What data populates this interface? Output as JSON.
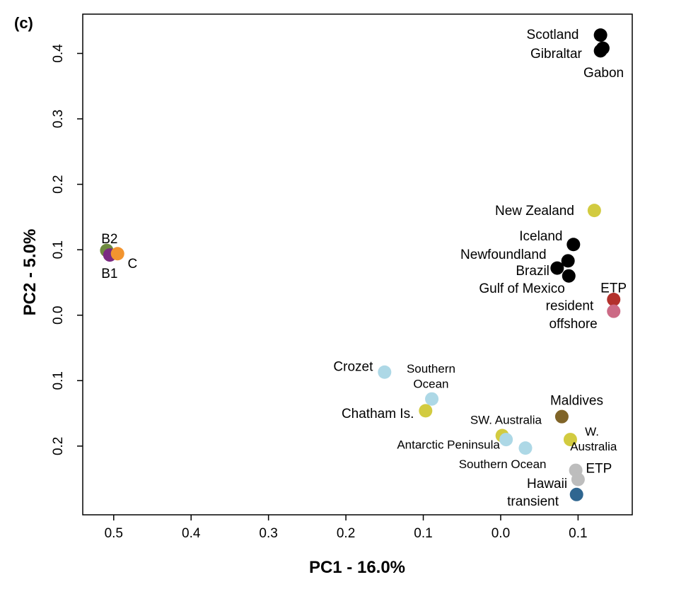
{
  "panel_label": "(c)",
  "chart_data": {
    "type": "scatter",
    "xlabel": "PC1 - 16.0%",
    "ylabel": "PC2 - 5.0%",
    "x_axis_data_range": [
      -0.54,
      0.17
    ],
    "y_axis_data_range": [
      -0.305,
      0.46
    ],
    "x_ticks": [
      {
        "value": -0.5,
        "label": "0.5"
      },
      {
        "value": -0.4,
        "label": "0.4"
      },
      {
        "value": -0.3,
        "label": "0.3"
      },
      {
        "value": -0.2,
        "label": "0.2"
      },
      {
        "value": -0.1,
        "label": "0.1"
      },
      {
        "value": 0.0,
        "label": "0.0"
      },
      {
        "value": 0.1,
        "label": "0.1"
      }
    ],
    "y_ticks": [
      {
        "value": 0.4,
        "label": "0.4"
      },
      {
        "value": 0.3,
        "label": "0.3"
      },
      {
        "value": 0.2,
        "label": "0.2"
      },
      {
        "value": 0.1,
        "label": "0.1"
      },
      {
        "value": 0.0,
        "label": "0.0"
      },
      {
        "value": -0.1,
        "label": "0.1"
      },
      {
        "value": -0.2,
        "label": "0.2"
      }
    ],
    "grid": false,
    "points": [
      {
        "x": 0.129,
        "y": 0.428,
        "color": "#000000"
      },
      {
        "x": 0.132,
        "y": 0.408,
        "color": "#000000"
      },
      {
        "x": 0.129,
        "y": 0.404,
        "color": "#000000"
      },
      {
        "x": 0.094,
        "y": 0.108,
        "color": "#000000"
      },
      {
        "x": 0.087,
        "y": 0.083,
        "color": "#000000"
      },
      {
        "x": 0.073,
        "y": 0.072,
        "color": "#000000"
      },
      {
        "x": 0.088,
        "y": 0.06,
        "color": "#000000"
      },
      {
        "x": 0.121,
        "y": 0.16,
        "color": "#d2cb40"
      },
      {
        "x": 0.146,
        "y": 0.024,
        "color": "#b3312c"
      },
      {
        "x": 0.146,
        "y": 0.006,
        "color": "#cc6a85"
      },
      {
        "x": -0.509,
        "y": 0.099,
        "color": "#6e8a3f"
      },
      {
        "x": -0.505,
        "y": 0.092,
        "color": "#7a2a82"
      },
      {
        "x": -0.495,
        "y": 0.094,
        "color": "#f2942f"
      },
      {
        "x": -0.15,
        "y": -0.087,
        "color": "#add8e6"
      },
      {
        "x": -0.089,
        "y": -0.128,
        "color": "#add8e6"
      },
      {
        "x": -0.097,
        "y": -0.146,
        "color": "#d2cb40"
      },
      {
        "x": 0.002,
        "y": -0.184,
        "color": "#d2cb40"
      },
      {
        "x": 0.007,
        "y": -0.19,
        "color": "#add8e6"
      },
      {
        "x": 0.032,
        "y": -0.203,
        "color": "#add8e6"
      },
      {
        "x": 0.079,
        "y": -0.155,
        "color": "#806428"
      },
      {
        "x": 0.09,
        "y": -0.19,
        "color": "#d2cb40"
      },
      {
        "x": 0.097,
        "y": -0.237,
        "color": "#bdbdbd"
      },
      {
        "x": 0.1,
        "y": -0.251,
        "color": "#bdbdbd"
      },
      {
        "x": 0.098,
        "y": -0.274,
        "color": "#2f6690"
      }
    ],
    "annotations": [
      {
        "text": "Scotland",
        "x": 0.101,
        "y": 0.428,
        "anchor": "end",
        "size": "normal"
      },
      {
        "text": "Gibraltar",
        "x": 0.105,
        "y": 0.399,
        "anchor": "end",
        "size": "normal"
      },
      {
        "text": "Gabon",
        "x": 0.107,
        "y": 0.37,
        "anchor": "start",
        "size": "normal"
      },
      {
        "text": "New Zealand",
        "x": 0.095,
        "y": 0.159,
        "anchor": "end",
        "size": "normal"
      },
      {
        "text": "Iceland",
        "x": 0.08,
        "y": 0.12,
        "anchor": "end",
        "size": "normal"
      },
      {
        "text": "Newfoundland",
        "x": 0.059,
        "y": 0.092,
        "anchor": "end",
        "size": "normal"
      },
      {
        "text": "Brazil",
        "x": 0.063,
        "y": 0.067,
        "anchor": "end",
        "size": "normal"
      },
      {
        "text": "Gulf of Mexico",
        "x": 0.083,
        "y": 0.04,
        "anchor": "end",
        "size": "normal"
      },
      {
        "text": "ETP",
        "x": 0.129,
        "y": 0.041,
        "anchor": "start",
        "size": "normal"
      },
      {
        "text": "resident",
        "x": 0.12,
        "y": 0.014,
        "anchor": "end",
        "size": "normal"
      },
      {
        "text": "offshore",
        "x": 0.125,
        "y": -0.014,
        "anchor": "end",
        "size": "normal"
      },
      {
        "text": "B2",
        "x": -0.516,
        "y": 0.116,
        "anchor": "start",
        "size": "normal"
      },
      {
        "text": "B1",
        "x": -0.516,
        "y": 0.063,
        "anchor": "start",
        "size": "normal"
      },
      {
        "text": "C",
        "x": -0.482,
        "y": 0.078,
        "anchor": "start",
        "size": "normal"
      },
      {
        "text": "Crozet",
        "x": -0.165,
        "y": -0.079,
        "anchor": "end",
        "size": "normal"
      },
      {
        "text": "Southern",
        "x": -0.09,
        "y": -0.082,
        "anchor": "middle",
        "size": "small"
      },
      {
        "text": "Ocean",
        "x": -0.09,
        "y": -0.105,
        "anchor": "middle",
        "size": "small"
      },
      {
        "text": "Chatham  Is.",
        "x": -0.112,
        "y": -0.151,
        "anchor": "end",
        "size": "normal"
      },
      {
        "text": "Maldives",
        "x": 0.064,
        "y": -0.131,
        "anchor": "start",
        "size": "normal"
      },
      {
        "text": "SW. Australia",
        "x": 0.053,
        "y": -0.16,
        "anchor": "end",
        "size": "small"
      },
      {
        "text": "W.",
        "x": 0.118,
        "y": -0.178,
        "anchor": "middle",
        "size": "small"
      },
      {
        "text": "Australia",
        "x": 0.12,
        "y": -0.201,
        "anchor": "middle",
        "size": "small"
      },
      {
        "text": "Antarctic Peninsula",
        "x": -0.001,
        "y": -0.198,
        "anchor": "end",
        "size": "small"
      },
      {
        "text": "Southern Ocean",
        "x": 0.059,
        "y": -0.228,
        "anchor": "end",
        "size": "small"
      },
      {
        "text": "ETP",
        "x": 0.11,
        "y": -0.235,
        "anchor": "start",
        "size": "normal"
      },
      {
        "text": "Hawaii",
        "x": 0.086,
        "y": -0.258,
        "anchor": "end",
        "size": "normal"
      },
      {
        "text": "transient",
        "x": 0.075,
        "y": -0.285,
        "anchor": "end",
        "size": "normal"
      }
    ]
  }
}
